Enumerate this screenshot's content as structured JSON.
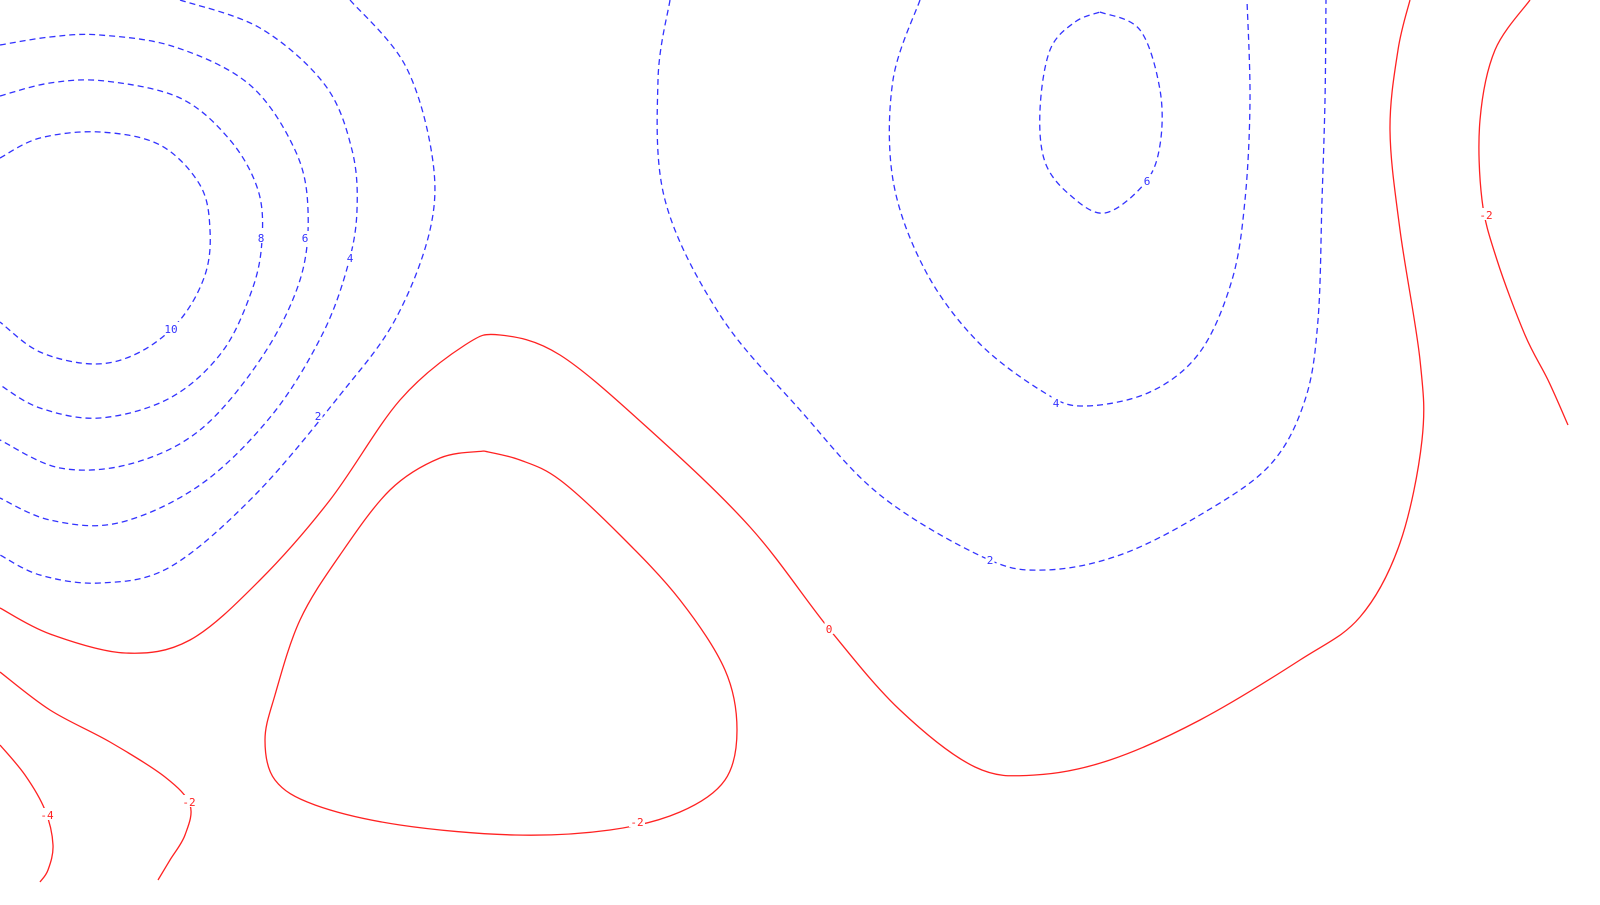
{
  "chart_data": {
    "type": "contour",
    "title": "",
    "xlabel": "",
    "ylabel": "",
    "grid": false,
    "legend": "none",
    "colors": {
      "positive": "#3333ff",
      "nonpositive": "#ff2222"
    },
    "line_styles": {
      "positive": "dashed",
      "nonpositive": "solid"
    },
    "contour_levels": [
      10,
      8,
      6,
      4,
      2,
      0,
      -2,
      -4
    ],
    "contours": [
      {
        "name": "contour-left-10",
        "level": 10,
        "label": "10",
        "points": [
          [
            0,
            158
          ],
          [
            40,
            138
          ],
          [
            100,
            132
          ],
          [
            160,
            145
          ],
          [
            200,
            185
          ],
          [
            210,
            230
          ],
          [
            205,
            275
          ],
          [
            180,
            320
          ],
          [
            140,
            352
          ],
          [
            95,
            364
          ],
          [
            40,
            352
          ],
          [
            0,
            322
          ]
        ]
      },
      {
        "name": "contour-left-8",
        "level": 8,
        "label": "8",
        "points": [
          [
            0,
            96
          ],
          [
            50,
            83
          ],
          [
            105,
            81
          ],
          [
            180,
            98
          ],
          [
            230,
            140
          ],
          [
            258,
            190
          ],
          [
            262,
            240
          ],
          [
            252,
            290
          ],
          [
            222,
            352
          ],
          [
            170,
            398
          ],
          [
            100,
            418
          ],
          [
            40,
            408
          ],
          [
            0,
            385
          ]
        ]
      },
      {
        "name": "contour-left-6",
        "level": 6,
        "label": "6",
        "points": [
          [
            0,
            45
          ],
          [
            50,
            37
          ],
          [
            100,
            35
          ],
          [
            175,
            47
          ],
          [
            250,
            85
          ],
          [
            295,
            150
          ],
          [
            308,
            210
          ],
          [
            300,
            280
          ],
          [
            262,
            357
          ],
          [
            200,
            430
          ],
          [
            130,
            464
          ],
          [
            60,
            468
          ],
          [
            0,
            440
          ]
        ]
      },
      {
        "name": "contour-left-4",
        "level": 4,
        "label": "4",
        "points": [
          [
            180,
            0
          ],
          [
            260,
            28
          ],
          [
            325,
            85
          ],
          [
            352,
            150
          ],
          [
            357,
            210
          ],
          [
            348,
            265
          ],
          [
            322,
            335
          ],
          [
            272,
            415
          ],
          [
            200,
            485
          ],
          [
            118,
            523
          ],
          [
            50,
            520
          ],
          [
            0,
            498
          ]
        ]
      },
      {
        "name": "contour-left-2",
        "level": 2,
        "label": "2",
        "points": [
          [
            350,
            0
          ],
          [
            405,
            65
          ],
          [
            432,
            155
          ],
          [
            430,
            230
          ],
          [
            395,
            320
          ],
          [
            340,
            395
          ],
          [
            255,
            495
          ],
          [
            170,
            567
          ],
          [
            100,
            583
          ],
          [
            40,
            575
          ],
          [
            0,
            555
          ]
        ]
      },
      {
        "name": "contour-right-6",
        "level": 6,
        "label": "6",
        "points": [
          [
            1100,
            12
          ],
          [
            1140,
            30
          ],
          [
            1160,
            90
          ],
          [
            1160,
            145
          ],
          [
            1145,
            183
          ],
          [
            1105,
            213
          ],
          [
            1070,
            195
          ],
          [
            1045,
            162
          ],
          [
            1040,
            110
          ],
          [
            1050,
            50
          ],
          [
            1075,
            22
          ],
          [
            1100,
            12
          ]
        ]
      },
      {
        "name": "contour-right-4",
        "level": 4,
        "label": "4",
        "points": [
          [
            920,
            0
          ],
          [
            893,
            80
          ],
          [
            893,
            180
          ],
          [
            925,
            270
          ],
          [
            978,
            342
          ],
          [
            1045,
            393
          ],
          [
            1085,
            406
          ],
          [
            1150,
            392
          ],
          [
            1200,
            352
          ],
          [
            1232,
            280
          ],
          [
            1245,
            200
          ],
          [
            1250,
            100
          ],
          [
            1247,
            0
          ]
        ]
      },
      {
        "name": "contour-right-2",
        "level": 2,
        "label": "2",
        "points": [
          [
            670,
            0
          ],
          [
            658,
            80
          ],
          [
            665,
            200
          ],
          [
            720,
            315
          ],
          [
            800,
            410
          ],
          [
            880,
            495
          ],
          [
            985,
            558
          ],
          [
            1045,
            570
          ],
          [
            1120,
            555
          ],
          [
            1200,
            515
          ],
          [
            1270,
            465
          ],
          [
            1305,
            400
          ],
          [
            1318,
            320
          ],
          [
            1322,
            200
          ],
          [
            1325,
            100
          ],
          [
            1326,
            0
          ]
        ]
      },
      {
        "name": "contour-0",
        "level": 0,
        "label": "0",
        "points": [
          [
            0,
            608
          ],
          [
            50,
            634
          ],
          [
            125,
            653
          ],
          [
            190,
            640
          ],
          [
            260,
            580
          ],
          [
            330,
            500
          ],
          [
            400,
            400
          ],
          [
            465,
            345
          ],
          [
            500,
            335
          ],
          [
            560,
            355
          ],
          [
            650,
            430
          ],
          [
            750,
            527
          ],
          [
            830,
            630
          ],
          [
            900,
            710
          ],
          [
            975,
            767
          ],
          [
            1035,
            775
          ],
          [
            1110,
            760
          ],
          [
            1200,
            720
          ],
          [
            1300,
            660
          ],
          [
            1360,
            617
          ],
          [
            1400,
            543
          ],
          [
            1422,
            440
          ],
          [
            1420,
            360
          ],
          [
            1400,
            230
          ],
          [
            1390,
            130
          ],
          [
            1398,
            50
          ],
          [
            1410,
            0
          ]
        ]
      },
      {
        "name": "contour-inner-minus2",
        "level": -2,
        "label": "-2",
        "points": [
          [
            484,
            451
          ],
          [
            520,
            460
          ],
          [
            560,
            480
          ],
          [
            620,
            535
          ],
          [
            680,
            600
          ],
          [
            725,
            670
          ],
          [
            737,
            730
          ],
          [
            725,
            780
          ],
          [
            680,
            812
          ],
          [
            610,
            830
          ],
          [
            515,
            835
          ],
          [
            400,
            825
          ],
          [
            315,
            805
          ],
          [
            275,
            780
          ],
          [
            265,
            740
          ],
          [
            275,
            695
          ],
          [
            300,
            620
          ],
          [
            340,
            555
          ],
          [
            390,
            490
          ],
          [
            440,
            458
          ],
          [
            484,
            451
          ]
        ]
      },
      {
        "name": "contour-left-minus2",
        "level": -2,
        "label": "-2",
        "points": [
          [
            0,
            672
          ],
          [
            50,
            710
          ],
          [
            110,
            742
          ],
          [
            165,
            777
          ],
          [
            190,
            805
          ],
          [
            185,
            835
          ],
          [
            170,
            860
          ],
          [
            158,
            880
          ]
        ]
      },
      {
        "name": "contour-right-minus2",
        "level": -2,
        "label": "-2",
        "points": [
          [
            1530,
            0
          ],
          [
            1495,
            50
          ],
          [
            1480,
            120
          ],
          [
            1482,
            200
          ],
          [
            1497,
            260
          ],
          [
            1525,
            335
          ],
          [
            1548,
            380
          ],
          [
            1568,
            425
          ]
        ]
      },
      {
        "name": "contour-left-minus4",
        "level": -4,
        "label": "-4",
        "points": [
          [
            0,
            745
          ],
          [
            25,
            775
          ],
          [
            45,
            810
          ],
          [
            53,
            845
          ],
          [
            48,
            870
          ],
          [
            40,
            882
          ]
        ]
      }
    ]
  }
}
